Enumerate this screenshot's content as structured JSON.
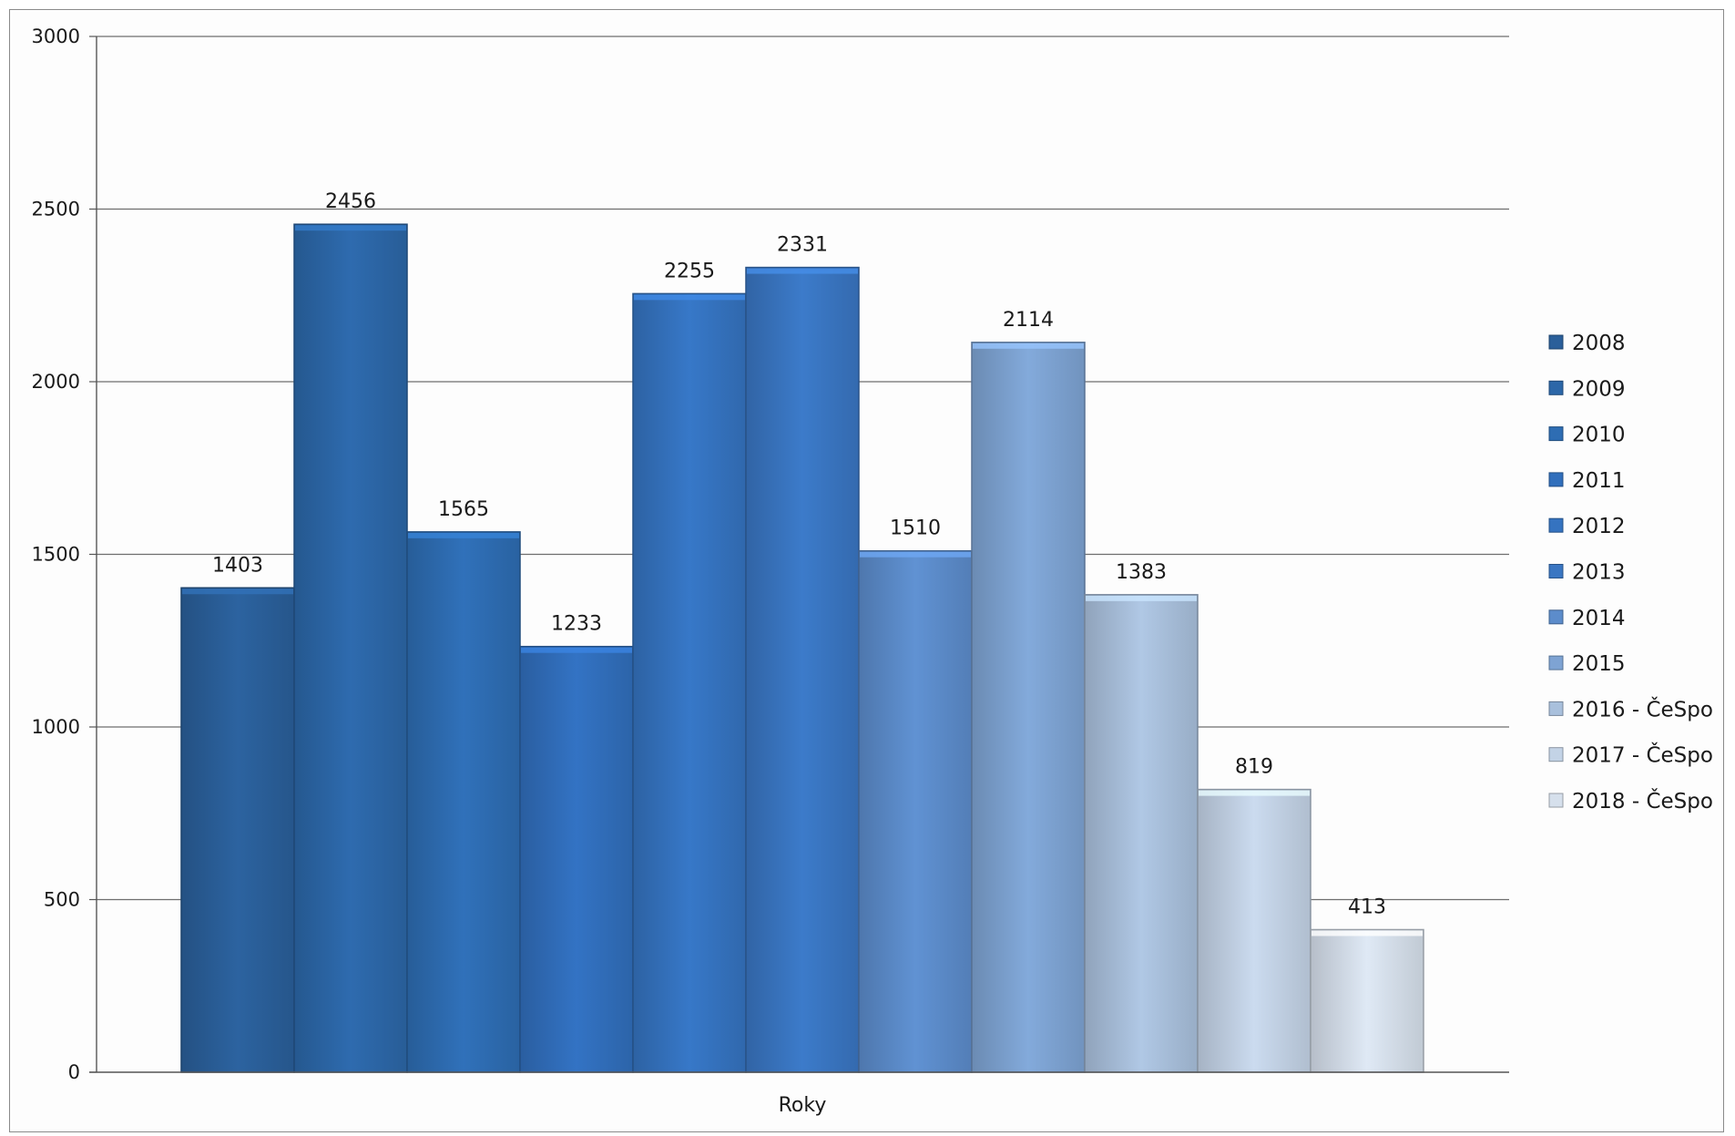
{
  "chart_data": {
    "type": "bar",
    "title": "",
    "xlabel": "Roky",
    "ylabel": "",
    "ylim": [
      0,
      3000
    ],
    "yticks": [
      0,
      500,
      1000,
      1500,
      2000,
      2500,
      3000
    ],
    "grid": true,
    "legend_position": "right",
    "categories": [
      "2008",
      "2009",
      "2010",
      "2011",
      "2012",
      "2013",
      "2014",
      "2015",
      "2016 - ČeSpo",
      "2017 - ČeSpo",
      "2018 - ČeSpo"
    ],
    "values": [
      1403,
      2456,
      1565,
      1233,
      2255,
      2331,
      1510,
      2114,
      1383,
      819,
      413
    ],
    "colors": [
      "#2a5f9a",
      "#2c67a8",
      "#2e6db3",
      "#316fbc",
      "#3573c0",
      "#3a76c2",
      "#5c8ccb",
      "#7ea3d3",
      "#a9c0dc",
      "#c3d3e6",
      "#d6e0ec"
    ]
  }
}
